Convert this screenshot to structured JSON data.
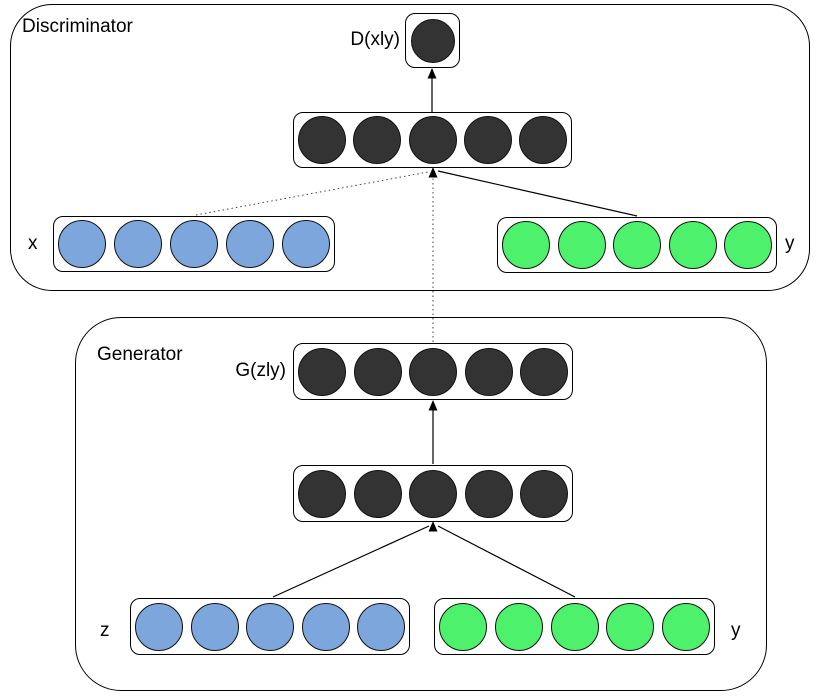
{
  "diagram_type": "conditional-gan-architecture",
  "discriminator": {
    "label": "Discriminator",
    "output": {
      "label": "D(xly)",
      "nodes": 1,
      "color": "#333333"
    },
    "hidden": {
      "nodes": 5,
      "color": "#333333"
    },
    "input_x": {
      "label": "x",
      "nodes": 5,
      "color": "#7da6dc"
    },
    "input_y": {
      "label": "y",
      "nodes": 5,
      "color": "#4ef16c"
    }
  },
  "generator": {
    "label": "Generator",
    "output": {
      "label": "G(zly)",
      "nodes": 5,
      "color": "#333333"
    },
    "hidden": {
      "nodes": 5,
      "color": "#333333"
    },
    "input_z": {
      "label": "z",
      "nodes": 5,
      "color": "#7da6dc"
    },
    "input_y": {
      "label": "y",
      "nodes": 5,
      "color": "#4ef16c"
    }
  },
  "colors": {
    "outline": "#000000",
    "hidden_node": "#333333",
    "noise_node": "#7da6dc",
    "condition_node": "#4ef16c"
  }
}
